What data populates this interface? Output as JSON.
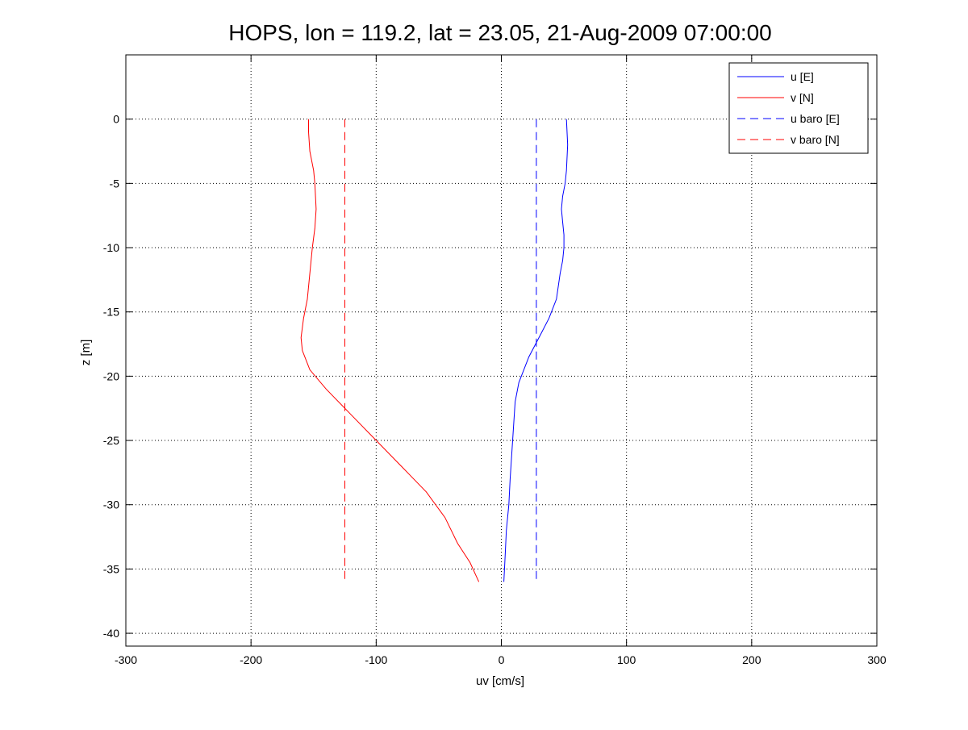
{
  "chart_data": {
    "type": "line",
    "title": "HOPS, lon = 119.2, lat = 23.05, 21-Aug-2009 07:00:00",
    "xlabel": "uv [cm/s]",
    "ylabel": "z [m]",
    "xlim": [
      -300,
      300
    ],
    "ylim": [
      -41,
      5
    ],
    "xticks": [
      -300,
      -200,
      -100,
      0,
      100,
      200,
      300
    ],
    "yticks": [
      0,
      -5,
      -10,
      -15,
      -20,
      -25,
      -30,
      -35,
      -40
    ],
    "grid": true,
    "legend_position": "top-right",
    "series": [
      {
        "name": "u [E]",
        "color": "#0000ff",
        "dash": "solid",
        "x": [
          52,
          53,
          52,
          51,
          49,
          48,
          49,
          50,
          50,
          49,
          47,
          44,
          38,
          30,
          22,
          14,
          11,
          9,
          7,
          6,
          4,
          3,
          2
        ],
        "y": [
          0,
          -2,
          -4,
          -5,
          -6,
          -7,
          -8,
          -9,
          -10,
          -11,
          -12,
          -14,
          -15.5,
          -17,
          -18.5,
          -20.5,
          -22,
          -25,
          -28,
          -30,
          -32,
          -34,
          -36
        ]
      },
      {
        "name": "v [N]",
        "color": "#ff0000",
        "dash": "solid",
        "x": [
          -154,
          -154,
          -153,
          -150,
          -149,
          -148,
          -149,
          -151,
          -153,
          -155,
          -158,
          -160,
          -159,
          -153,
          -140,
          -120,
          -100,
          -80,
          -60,
          -45,
          -35,
          -25,
          -18
        ],
        "y": [
          0,
          -1,
          -2.5,
          -4,
          -5,
          -7,
          -8.5,
          -10,
          -12,
          -14,
          -15.5,
          -17,
          -18,
          -19.5,
          -21,
          -23,
          -25,
          -27,
          -29,
          -31,
          -33,
          -34.5,
          -36
        ]
      },
      {
        "name": "u baro [E]",
        "color": "#0000ff",
        "dash": "dashed",
        "x": [
          28,
          28
        ],
        "y": [
          0,
          -36
        ]
      },
      {
        "name": "v baro [N]",
        "color": "#ff0000",
        "dash": "dashed",
        "x": [
          -125,
          -125
        ],
        "y": [
          0,
          -36
        ]
      }
    ]
  }
}
